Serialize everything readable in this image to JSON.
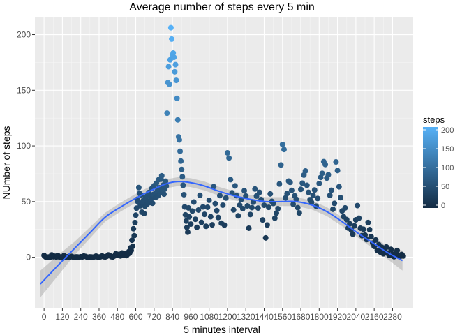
{
  "chart_data": {
    "type": "scatter",
    "title": "Average number of steps every 5 min",
    "xlabel": "5 minutes interval",
    "ylabel": "NUmber of steps",
    "xlim": [
      -60,
      2415
    ],
    "ylim": [
      -46,
      216
    ],
    "x_ticks": [
      0,
      120,
      240,
      360,
      480,
      600,
      720,
      840,
      960,
      1080,
      1200,
      1320,
      1440,
      1560,
      1680,
      1800,
      1920,
      2040,
      2160,
      2280
    ],
    "x_tick_labels": [
      "0",
      "120",
      "240",
      "360",
      "480",
      "600",
      "720",
      "840",
      "960",
      "1080",
      "1200",
      "1320",
      "1440",
      "1560",
      "1680",
      "1800",
      "1920",
      "2040",
      "2160",
      "2280"
    ],
    "y_ticks": [
      0,
      50,
      100,
      150,
      200
    ],
    "y_tick_labels": [
      "0",
      "50",
      "100",
      "150",
      "200"
    ],
    "grid": true,
    "legend": {
      "title": "steps",
      "position": "right",
      "labels": [
        "200",
        "150",
        "100",
        "50",
        "0"
      ],
      "values": [
        200,
        150,
        100,
        50,
        0
      ],
      "low_color": "#132B43",
      "high_color": "#56B1F7"
    },
    "smooth_line_color": "#3366FF",
    "point_series": [
      {
        "x": [
          0,
          10,
          20,
          30,
          40,
          50,
          60,
          70,
          80,
          90,
          100,
          110,
          120,
          130,
          140,
          150,
          160,
          170,
          180,
          190,
          200,
          210,
          220,
          230,
          240,
          250,
          260,
          270,
          280,
          290,
          300,
          310,
          320,
          330,
          340,
          350,
          360,
          370,
          380,
          390,
          400,
          410,
          420,
          430,
          440,
          450,
          460,
          470,
          480,
          490,
          500,
          510,
          520,
          530,
          540,
          550
        ],
        "y": [
          1.7,
          0.3,
          0.1,
          0.2,
          0.1,
          2.1,
          0.5,
          0.9,
          0.2,
          1.6,
          0.3,
          0.2,
          0.1,
          1.5,
          0.2,
          0.4,
          0.3,
          0.1,
          0.8,
          0.2,
          0.1,
          0.3,
          0.2,
          0.1,
          0.5,
          0.3,
          1.1,
          0.8,
          0.2,
          0.1,
          0.3,
          0.2,
          0.1,
          0.4,
          1.0,
          0.3,
          0.2,
          0.4,
          1.2,
          0.5,
          0.3,
          0.8,
          2.1,
          1.5,
          0.5,
          0.3,
          1.1,
          3.2,
          1.8,
          2.6,
          1.2,
          3.8,
          2.1,
          3.4,
          1.5,
          2.9
        ]
      },
      {
        "x": [
          555,
          560,
          565,
          570,
          575,
          580,
          585,
          590,
          595,
          600,
          605,
          610,
          615,
          620,
          625,
          630,
          635,
          640,
          645,
          650,
          655,
          660,
          665,
          670,
          675,
          680,
          685,
          690,
          695,
          700,
          705,
          710,
          715,
          720,
          725,
          730,
          735,
          740,
          745,
          750,
          755,
          760,
          765,
          770,
          775,
          780,
          785,
          790,
          795,
          800
        ],
        "y": [
          5.1,
          3.8,
          8.4,
          6.2,
          15.3,
          9.8,
          25.6,
          19.4,
          31.2,
          37.8,
          44.1,
          52.0,
          49.5,
          62.6,
          57.3,
          46.2,
          55.8,
          40.5,
          49.7,
          51.1,
          39.2,
          45.8,
          53.6,
          47.3,
          55.2,
          50.4,
          58.1,
          49.0,
          54.9,
          52.3,
          61.7,
          48.5,
          56.4,
          64.2,
          57.0,
          53.8,
          66.5,
          59.3,
          55.1,
          69.7,
          62.4,
          58.0,
          70.1,
          73.2,
          60.5,
          64.8,
          56.7,
          61.2,
          68.3,
          63.9
        ]
      },
      {
        "x": [
          805,
          810,
          815,
          820,
          825,
          830,
          835,
          840,
          845,
          850,
          855,
          860,
          865,
          870,
          875,
          880,
          885,
          890,
          895,
          900,
          905,
          910,
          915,
          920,
          925,
          930,
          935
        ],
        "y": [
          129.4,
          156.9,
          171.2,
          155.4,
          177.3,
          206.2,
          196.0,
          181.6,
          183.4,
          179.6,
          166.6,
          173.0,
          158.9,
          142.8,
          123.4,
          108.1,
          105.4,
          95.2,
          86.4,
          78.9,
          72.3,
          64.6,
          56.2,
          45.2,
          38.1,
          32.5,
          26.8
        ]
      },
      {
        "x": [
          940,
          945,
          950,
          960,
          970,
          980,
          990,
          1000,
          1010,
          1020,
          1030,
          1040,
          1050,
          1060,
          1070,
          1080,
          1090,
          1100,
          1110,
          1120,
          1130,
          1140,
          1150,
          1160,
          1170,
          1180,
          1190,
          1200,
          1210,
          1220,
          1230,
          1240,
          1250,
          1260,
          1270,
          1280,
          1290,
          1300,
          1310,
          1320,
          1330,
          1340,
          1350,
          1360,
          1370,
          1380,
          1390,
          1400,
          1410,
          1420,
          1430,
          1440,
          1450,
          1460,
          1470,
          1480,
          1490,
          1500,
          1510,
          1520,
          1530,
          1540,
          1550,
          1560,
          1570,
          1580,
          1590,
          1600,
          1610,
          1620,
          1630,
          1640,
          1650,
          1660,
          1670,
          1680,
          1690,
          1700,
          1710,
          1720,
          1730,
          1740,
          1750,
          1760,
          1770,
          1780,
          1790,
          1800,
          1810,
          1820,
          1830,
          1840,
          1850,
          1860,
          1870,
          1880,
          1890,
          1900,
          1910,
          1920
        ],
        "y": [
          22.5,
          44.3,
          36.2,
          29.8,
          41.5,
          49.6,
          34.1,
          26.9,
          42.4,
          55.7,
          31.3,
          45.2,
          38.5,
          27.8,
          44.9,
          51.2,
          36.4,
          29.1,
          63.4,
          48.2,
          41.9,
          35.7,
          55.4,
          30.6,
          46.8,
          28.9,
          53.2,
          93.8,
          89.1,
          69.7,
          57.9,
          42.5,
          64.1,
          55.3,
          37.2,
          46.8,
          51.9,
          43.6,
          59.8,
          55.0,
          46.1,
          26.1,
          38.4,
          44.6,
          49.5,
          61.3,
          55.0,
          44.2,
          58.3,
          51.8,
          33.5,
          46.7,
          17.4,
          29.0,
          44.8,
          56.9,
          50.2,
          48.3,
          35.1,
          39.7,
          43.6,
          65.8,
          82.9,
          101.3,
          96.8,
          53.3,
          57.2,
          68.4,
          67.3,
          60.1,
          47.6,
          55.2,
          52.1,
          44.5,
          39.8,
          61.0,
          66.5,
          73.8,
          77.5,
          64.6,
          58.3,
          51.7,
          49.3,
          55.6,
          60.4,
          45.9,
          52.8,
          66.2,
          71.7,
          75.4,
          85.9,
          83.3,
          71.1,
          74.1,
          55.6,
          60.2,
          43.1,
          48.4,
          85.6,
          77.9
        ]
      },
      {
        "x": [
          1930,
          1940,
          1950,
          1960,
          1970,
          1980,
          1990,
          2000,
          2010,
          2020,
          2030,
          2040,
          2050,
          2060,
          2070,
          2080,
          2090,
          2100,
          2110,
          2120,
          2130,
          2140,
          2150,
          2160,
          2170,
          2180,
          2190,
          2200,
          2210,
          2220,
          2230,
          2240,
          2250,
          2260,
          2270,
          2280,
          2290,
          2300,
          2310,
          2320,
          2330,
          2340,
          2350
        ],
        "y": [
          63.3,
          53.5,
          41.6,
          36.4,
          44.3,
          33.8,
          26.2,
          30.1,
          24.5,
          20.7,
          28.2,
          33.6,
          46.4,
          35.1,
          26.1,
          19.4,
          25.2,
          20.0,
          15.9,
          31.2,
          24.8,
          18.5,
          12.7,
          9.8,
          15.5,
          6.2,
          11.3,
          4.7,
          8.9,
          3.1,
          6.8,
          9.2,
          3.3,
          1.6,
          7.1,
          2.8,
          0.5,
          3.6,
          6.1,
          1.2,
          0.8,
          2.5,
          1.1
        ]
      }
    ],
    "smooth_fit": {
      "x": [
        -24,
        100,
        200,
        300,
        400,
        500,
        600,
        700,
        800,
        880,
        960,
        1050,
        1150,
        1250,
        1350,
        1450,
        1550,
        1650,
        1750,
        1850,
        1950,
        2050,
        2150,
        2250,
        2345
      ],
      "y": [
        -24,
        -6,
        8,
        22,
        36,
        45,
        53,
        60,
        66,
        68,
        67,
        64,
        59,
        55,
        52,
        50,
        50,
        50,
        47,
        41,
        32,
        22,
        13,
        4,
        -3
      ],
      "ci_halfwidth": [
        12,
        9,
        6,
        5,
        4,
        4,
        4,
        4,
        4,
        4,
        4,
        4,
        4,
        4,
        4,
        4,
        4,
        4,
        4,
        4,
        4,
        4,
        5,
        6,
        9
      ]
    }
  }
}
